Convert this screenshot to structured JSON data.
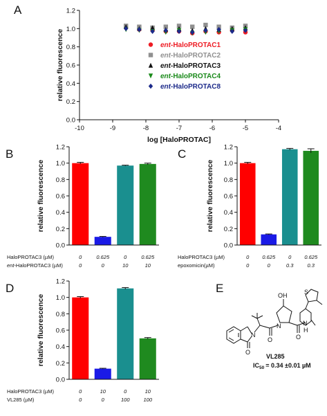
{
  "panels": {
    "A": {
      "letter": "A"
    },
    "B": {
      "letter": "B"
    },
    "C": {
      "letter": "C"
    },
    "D": {
      "letter": "D"
    },
    "E": {
      "letter": "E"
    }
  },
  "structure": {
    "label_oh": "OH",
    "label_n1": "N",
    "label_n2": "N",
    "label_n3": "N",
    "label_o1": "O",
    "label_o2": "O",
    "label_o3": "O",
    "label_h": "H",
    "label_s": "S",
    "compound_name": "VL285",
    "ic50_label": "IC",
    "ic50_sub": "50",
    "ic50_value": "= 0.34 ±0.01 µM"
  },
  "chart_data": [
    {
      "panel": "A",
      "type": "scatter",
      "xlabel": "log [HaloPROTAC]",
      "ylabel": "relative fluorescence",
      "xlim": [
        -10,
        -4
      ],
      "ylim": [
        0.0,
        1.2
      ],
      "xticks": [
        -10,
        -9,
        -8,
        -7,
        -6,
        -5,
        -4
      ],
      "yticks": [
        0.0,
        0.2,
        0.4,
        0.6,
        0.8,
        1.0,
        1.2
      ],
      "series": [
        {
          "name": "ent-HaloPROTAC1",
          "prefix": "ent",
          "suffix": "-HaloPROTAC1",
          "color": "#ee1c24",
          "marker": "circle",
          "x": [
            -8.6,
            -8.2,
            -7.8,
            -7.4,
            -7.0,
            -6.6,
            -6.2,
            -5.8,
            -5.4,
            -5.0
          ],
          "y": [
            1.01,
            0.99,
            0.98,
            0.97,
            0.97,
            0.95,
            0.97,
            0.96,
            0.98,
            0.96
          ]
        },
        {
          "name": "ent-HaloPROTAC2",
          "prefix": "ent",
          "suffix": "-HaloPROTAC2",
          "color": "#909090",
          "marker": "square",
          "x": [
            -8.6,
            -8.2,
            -7.8,
            -7.4,
            -7.0,
            -6.6,
            -6.2,
            -5.8,
            -5.4,
            -5.0
          ],
          "y": [
            1.03,
            1.02,
            1.01,
            1.02,
            1.03,
            1.02,
            1.04,
            1.02,
            1.01,
            1.03
          ]
        },
        {
          "name": "ent-HaloPROTAC3",
          "prefix": "ent",
          "suffix": "-HaloPROTAC3",
          "color": "#111111",
          "marker": "triangle-up",
          "x": [
            -8.6,
            -8.2,
            -7.8,
            -7.4,
            -7.0,
            -6.6,
            -6.2,
            -5.8,
            -5.4,
            -5.0
          ],
          "y": [
            1.02,
            1.0,
            1.01,
            0.99,
            1.0,
            0.98,
            1.0,
            0.99,
            1.0,
            1.01
          ]
        },
        {
          "name": "ent-HaloPROTAC4",
          "prefix": "ent",
          "suffix": "-HaloPROTAC4",
          "color": "#1a8a1a",
          "marker": "triangle-down",
          "x": [
            -8.6,
            -8.2,
            -7.8,
            -7.4,
            -7.0,
            -6.6,
            -6.2,
            -5.8,
            -5.4,
            -5.0
          ],
          "y": [
            0.99,
            0.98,
            0.97,
            0.96,
            0.98,
            0.95,
            0.96,
            0.97,
            0.98,
            0.99
          ]
        },
        {
          "name": "ent-HaloPROTAC8",
          "prefix": "ent",
          "suffix": "-HaloPROTAC8",
          "color": "#1c2a8a",
          "marker": "diamond",
          "x": [
            -8.6,
            -8.2,
            -7.8,
            -7.4,
            -7.0,
            -6.6,
            -6.2,
            -5.8,
            -5.4,
            -5.0
          ],
          "y": [
            1.0,
            0.99,
            0.97,
            0.98,
            0.97,
            0.96,
            0.98,
            0.99,
            0.97,
            0.98
          ]
        }
      ]
    },
    {
      "panel": "B",
      "type": "bar",
      "ylabel": "relative fluorescence",
      "ylim": [
        0.0,
        1.2
      ],
      "yticks": [
        "0.0",
        "0.2",
        "0.4",
        "0.6",
        "0.8",
        "1.0",
        "1.2"
      ],
      "values": [
        1.0,
        0.1,
        0.97,
        0.99
      ],
      "errors": [
        0.01,
        0.005,
        0.005,
        0.01
      ],
      "colors": [
        "#ff0000",
        "#1a1ae6",
        "#1a8f8f",
        "#1f8a1f"
      ],
      "conditions": [
        {
          "label": "HaloPROTAC3 (µM)",
          "prefix": "",
          "values": [
            "0",
            "0.625",
            "0",
            "0.625"
          ]
        },
        {
          "label": "-HaloPROTAC3 (µM)",
          "prefix": "ent",
          "values": [
            "0",
            "0",
            "10",
            "10"
          ]
        }
      ]
    },
    {
      "panel": "C",
      "type": "bar",
      "ylabel": "relative fluorescence",
      "ylim": [
        0.0,
        1.2
      ],
      "yticks": [
        "0.0",
        "0.2",
        "0.4",
        "0.6",
        "0.8",
        "1.0",
        "1.2"
      ],
      "values": [
        1.0,
        0.13,
        1.17,
        1.15
      ],
      "errors": [
        0.01,
        0.005,
        0.01,
        0.025
      ],
      "colors": [
        "#ff0000",
        "#1a1ae6",
        "#1a8f8f",
        "#1f8a1f"
      ],
      "conditions": [
        {
          "label": "HaloPROTAC3 (µM)",
          "prefix": "",
          "values": [
            "0",
            "0.625",
            "0",
            "0.625"
          ]
        },
        {
          "label": "epoxomicin(µM)",
          "prefix": "",
          "values": [
            "0",
            "0",
            "0.3",
            "0.3"
          ]
        }
      ]
    },
    {
      "panel": "D",
      "type": "bar",
      "ylabel": "relative fluorescence",
      "ylim": [
        0.0,
        1.2
      ],
      "yticks": [
        "0.0",
        "0.2",
        "0.4",
        "0.6",
        "0.8",
        "1.0",
        "1.2"
      ],
      "values": [
        1.0,
        0.13,
        1.11,
        0.5
      ],
      "errors": [
        0.01,
        0.005,
        0.01,
        0.01
      ],
      "colors": [
        "#ff0000",
        "#1a1ae6",
        "#1a8f8f",
        "#1f8a1f"
      ],
      "conditions": [
        {
          "label": "HaloPROTAC3 (µM)",
          "prefix": "",
          "values": [
            "0",
            "10",
            "0",
            "10"
          ]
        },
        {
          "label": "VL285 (µM)",
          "prefix": "",
          "values": [
            "0",
            "0",
            "100",
            "100"
          ]
        }
      ]
    }
  ]
}
